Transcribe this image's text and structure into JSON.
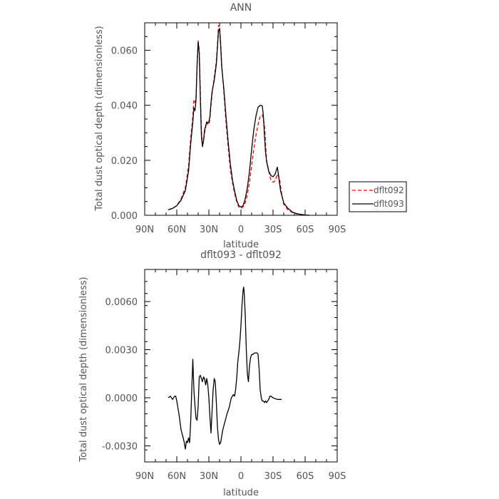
{
  "chart_data": [
    {
      "type": "line",
      "title": "ANN",
      "xlabel": "latitude",
      "ylabel": "Total dust optical depth (dimensionless)",
      "xlim": [
        90,
        -90
      ],
      "ylim": [
        0.0,
        0.07
      ],
      "xticks": [
        90,
        60,
        30,
        0,
        -30,
        -60,
        -90
      ],
      "xtick_labels": [
        "90N",
        "60N",
        "30N",
        "0",
        "30S",
        "60S",
        "90S"
      ],
      "yticks": [
        0.0,
        0.02,
        0.04,
        0.06
      ],
      "ytick_labels": [
        "0.000",
        "0.020",
        "0.040",
        "0.060"
      ],
      "yminor_step": 0.005,
      "legend_position": "right",
      "series": [
        {
          "name": "dflt092",
          "color": "#ff0000",
          "dash": "dashed",
          "points": [
            [
              68,
              0.002
            ],
            [
              64,
              0.0025
            ],
            [
              60,
              0.0035
            ],
            [
              56,
              0.006
            ],
            [
              52,
              0.01
            ],
            [
              49,
              0.018
            ],
            [
              47,
              0.028
            ],
            [
              45,
              0.036
            ],
            [
              44,
              0.042
            ],
            [
              43,
              0.041
            ],
            [
              42,
              0.043
            ],
            [
              41,
              0.055
            ],
            [
              40,
              0.0635
            ],
            [
              39,
              0.06
            ],
            [
              38,
              0.045
            ],
            [
              37,
              0.031
            ],
            [
              36,
              0.026
            ],
            [
              35,
              0.027
            ],
            [
              34,
              0.03
            ],
            [
              32,
              0.034
            ],
            [
              31,
              0.033
            ],
            [
              30,
              0.033
            ],
            [
              29,
              0.035
            ],
            [
              28,
              0.04
            ],
            [
              27,
              0.044
            ],
            [
              25,
              0.05
            ],
            [
              23,
              0.056
            ],
            [
              22,
              0.062
            ],
            [
              21,
              0.069
            ],
            [
              20,
              0.069
            ],
            [
              19,
              0.063
            ],
            [
              18,
              0.055
            ],
            [
              16,
              0.045
            ],
            [
              14,
              0.034
            ],
            [
              12,
              0.025
            ],
            [
              10,
              0.017
            ],
            [
              8,
              0.012
            ],
            [
              6,
              0.008
            ],
            [
              4,
              0.005
            ],
            [
              2,
              0.003
            ],
            [
              0,
              0.0025
            ],
            [
              -2,
              0.003
            ],
            [
              -4,
              0.0045
            ],
            [
              -6,
              0.0075
            ],
            [
              -8,
              0.012
            ],
            [
              -10,
              0.018
            ],
            [
              -12,
              0.024
            ],
            [
              -14,
              0.029
            ],
            [
              -16,
              0.033
            ],
            [
              -18,
              0.036
            ],
            [
              -20,
              0.0365
            ],
            [
              -22,
              0.033
            ],
            [
              -23,
              0.026
            ],
            [
              -24,
              0.02
            ],
            [
              -26,
              0.016
            ],
            [
              -28,
              0.013
            ],
            [
              -30,
              0.012
            ],
            [
              -32,
              0.0125
            ],
            [
              -34,
              0.015
            ],
            [
              -36,
              0.0135
            ],
            [
              -38,
              0.008
            ],
            [
              -40,
              0.004
            ],
            [
              -44,
              0.002
            ],
            [
              -48,
              0.001
            ],
            [
              -52,
              0.0005
            ],
            [
              -56,
              0.0003
            ],
            [
              -60,
              0.0001
            ],
            [
              -64,
              0.0
            ]
          ]
        },
        {
          "name": "dflt093",
          "color": "#000000",
          "dash": "solid",
          "points": [
            [
              68,
              0.002
            ],
            [
              64,
              0.0025
            ],
            [
              60,
              0.0035
            ],
            [
              56,
              0.0055
            ],
            [
              52,
              0.009
            ],
            [
              49,
              0.016
            ],
            [
              47,
              0.026
            ],
            [
              45,
              0.034
            ],
            [
              44,
              0.039
            ],
            [
              43,
              0.038
            ],
            [
              42,
              0.042
            ],
            [
              41,
              0.055
            ],
            [
              40,
              0.063
            ],
            [
              39,
              0.059
            ],
            [
              38,
              0.043
            ],
            [
              37,
              0.029
            ],
            [
              36,
              0.025
            ],
            [
              35,
              0.027
            ],
            [
              34,
              0.031
            ],
            [
              32,
              0.034
            ],
            [
              31,
              0.0335
            ],
            [
              30,
              0.034
            ],
            [
              29,
              0.036
            ],
            [
              28,
              0.041
            ],
            [
              27,
              0.045
            ],
            [
              25,
              0.049
            ],
            [
              23,
              0.055
            ],
            [
              22,
              0.061
            ],
            [
              21,
              0.067
            ],
            [
              20,
              0.068
            ],
            [
              19,
              0.062
            ],
            [
              18,
              0.054
            ],
            [
              16,
              0.046
            ],
            [
              14,
              0.036
            ],
            [
              12,
              0.027
            ],
            [
              10,
              0.019
            ],
            [
              8,
              0.013
            ],
            [
              6,
              0.009
            ],
            [
              4,
              0.0055
            ],
            [
              2,
              0.0035
            ],
            [
              0,
              0.003
            ],
            [
              -2,
              0.0035
            ],
            [
              -4,
              0.006
            ],
            [
              -6,
              0.01
            ],
            [
              -8,
              0.016
            ],
            [
              -10,
              0.024
            ],
            [
              -12,
              0.031
            ],
            [
              -14,
              0.036
            ],
            [
              -16,
              0.0393
            ],
            [
              -18,
              0.04
            ],
            [
              -20,
              0.0398
            ],
            [
              -21,
              0.036
            ],
            [
              -22,
              0.029
            ],
            [
              -23,
              0.023
            ],
            [
              -24,
              0.0195
            ],
            [
              -26,
              0.016
            ],
            [
              -28,
              0.0145
            ],
            [
              -30,
              0.014
            ],
            [
              -32,
              0.015
            ],
            [
              -34,
              0.0175
            ],
            [
              -35,
              0.015
            ],
            [
              -37,
              0.009
            ],
            [
              -40,
              0.0045
            ],
            [
              -44,
              0.0025
            ],
            [
              -48,
              0.0012
            ],
            [
              -52,
              0.0006
            ],
            [
              -56,
              0.0003
            ],
            [
              -60,
              0.0001
            ],
            [
              -64,
              0.0
            ]
          ]
        }
      ]
    },
    {
      "type": "line",
      "title": "dflt093 - dflt092",
      "xlabel": "latitude",
      "ylabel": "Total dust optical depth (dimensionless)",
      "xlim": [
        90,
        -90
      ],
      "ylim": [
        -0.004,
        0.008
      ],
      "xticks": [
        90,
        60,
        30,
        0,
        -30,
        -60,
        -90
      ],
      "xtick_labels": [
        "90N",
        "60N",
        "30N",
        "0",
        "30S",
        "60S",
        "90S"
      ],
      "yticks": [
        -0.003,
        0.0,
        0.003,
        0.006
      ],
      "ytick_labels": [
        "-0.0030",
        "0.0000",
        "0.0030",
        "0.0060"
      ],
      "yminor_step": 0.00075,
      "series": [
        {
          "name": "",
          "color": "#000000",
          "dash": "solid",
          "points": [
            [
              68,
              0.0
            ],
            [
              66,
              0.0001
            ],
            [
              64,
              -0.0001
            ],
            [
              62,
              0.0001
            ],
            [
              61,
              0.0001
            ],
            [
              60,
              -0.0002
            ],
            [
              58,
              -0.001
            ],
            [
              56,
              -0.002
            ],
            [
              54,
              -0.0025
            ],
            [
              53,
              -0.0028
            ],
            [
              52,
              -0.0032
            ],
            [
              51,
              -0.0027
            ],
            [
              50,
              -0.0028
            ],
            [
              49,
              -0.0025
            ],
            [
              48,
              -0.0028
            ],
            [
              47,
              -0.0015
            ],
            [
              46,
              0.0005
            ],
            [
              45,
              0.0024
            ],
            [
              44,
              0.0005
            ],
            [
              43,
              -0.0005
            ],
            [
              42,
              -0.0013
            ],
            [
              41,
              -0.0014
            ],
            [
              40,
              -0.0005
            ],
            [
              39,
              0.0013
            ],
            [
              38,
              0.0014
            ],
            [
              37,
              0.0012
            ],
            [
              36,
              0.001
            ],
            [
              35,
              0.0013
            ],
            [
              34,
              0.0012
            ],
            [
              33,
              0.0008
            ],
            [
              32,
              0.0012
            ],
            [
              31,
              0.0008
            ],
            [
              30,
              0.0
            ],
            [
              29,
              -0.0012
            ],
            [
              28,
              -0.0022
            ],
            [
              27,
              -0.0008
            ],
            [
              26,
              0.0005
            ],
            [
              25,
              0.0012
            ],
            [
              24,
              0.001
            ],
            [
              23,
              -0.0003
            ],
            [
              22,
              -0.0018
            ],
            [
              21,
              -0.0026
            ],
            [
              20,
              -0.0029
            ],
            [
              19,
              -0.0028
            ],
            [
              17,
              -0.002
            ],
            [
              15,
              -0.0015
            ],
            [
              13,
              -0.001
            ],
            [
              11,
              -0.0006
            ],
            [
              9,
              0.0
            ],
            [
              7,
              0.0002
            ],
            [
              6,
              0.0001
            ],
            [
              5,
              0.0005
            ],
            [
              4,
              0.0012
            ],
            [
              3,
              0.0022
            ],
            [
              2,
              0.0028
            ],
            [
              1,
              0.0035
            ],
            [
              0,
              0.0045
            ],
            [
              -1,
              0.0058
            ],
            [
              -2,
              0.0067
            ],
            [
              -2.5,
              0.0069
            ],
            [
              -3,
              0.0066
            ],
            [
              -4,
              0.0052
            ],
            [
              -5,
              0.003
            ],
            [
              -6,
              0.0015
            ],
            [
              -7,
              0.001
            ],
            [
              -8,
              0.002
            ],
            [
              -9,
              0.0025
            ],
            [
              -10,
              0.0027
            ],
            [
              -11,
              0.0027
            ],
            [
              -13,
              0.0028
            ],
            [
              -15,
              0.0028
            ],
            [
              -16,
              0.0027
            ],
            [
              -17,
              0.0018
            ],
            [
              -18,
              0.0005
            ],
            [
              -19,
              0.0
            ],
            [
              -20,
              -0.0002
            ],
            [
              -21,
              -0.0002
            ],
            [
              -22,
              -0.0003
            ],
            [
              -23,
              -0.0002
            ],
            [
              -24,
              -0.0003
            ],
            [
              -25,
              -0.0002
            ],
            [
              -26,
              -0.0001
            ],
            [
              -27,
              0.0001
            ],
            [
              -28,
              0.0001
            ],
            [
              -30,
              0.0
            ],
            [
              -34,
              -0.0001
            ],
            [
              -38,
              -0.0001
            ]
          ]
        }
      ]
    }
  ]
}
